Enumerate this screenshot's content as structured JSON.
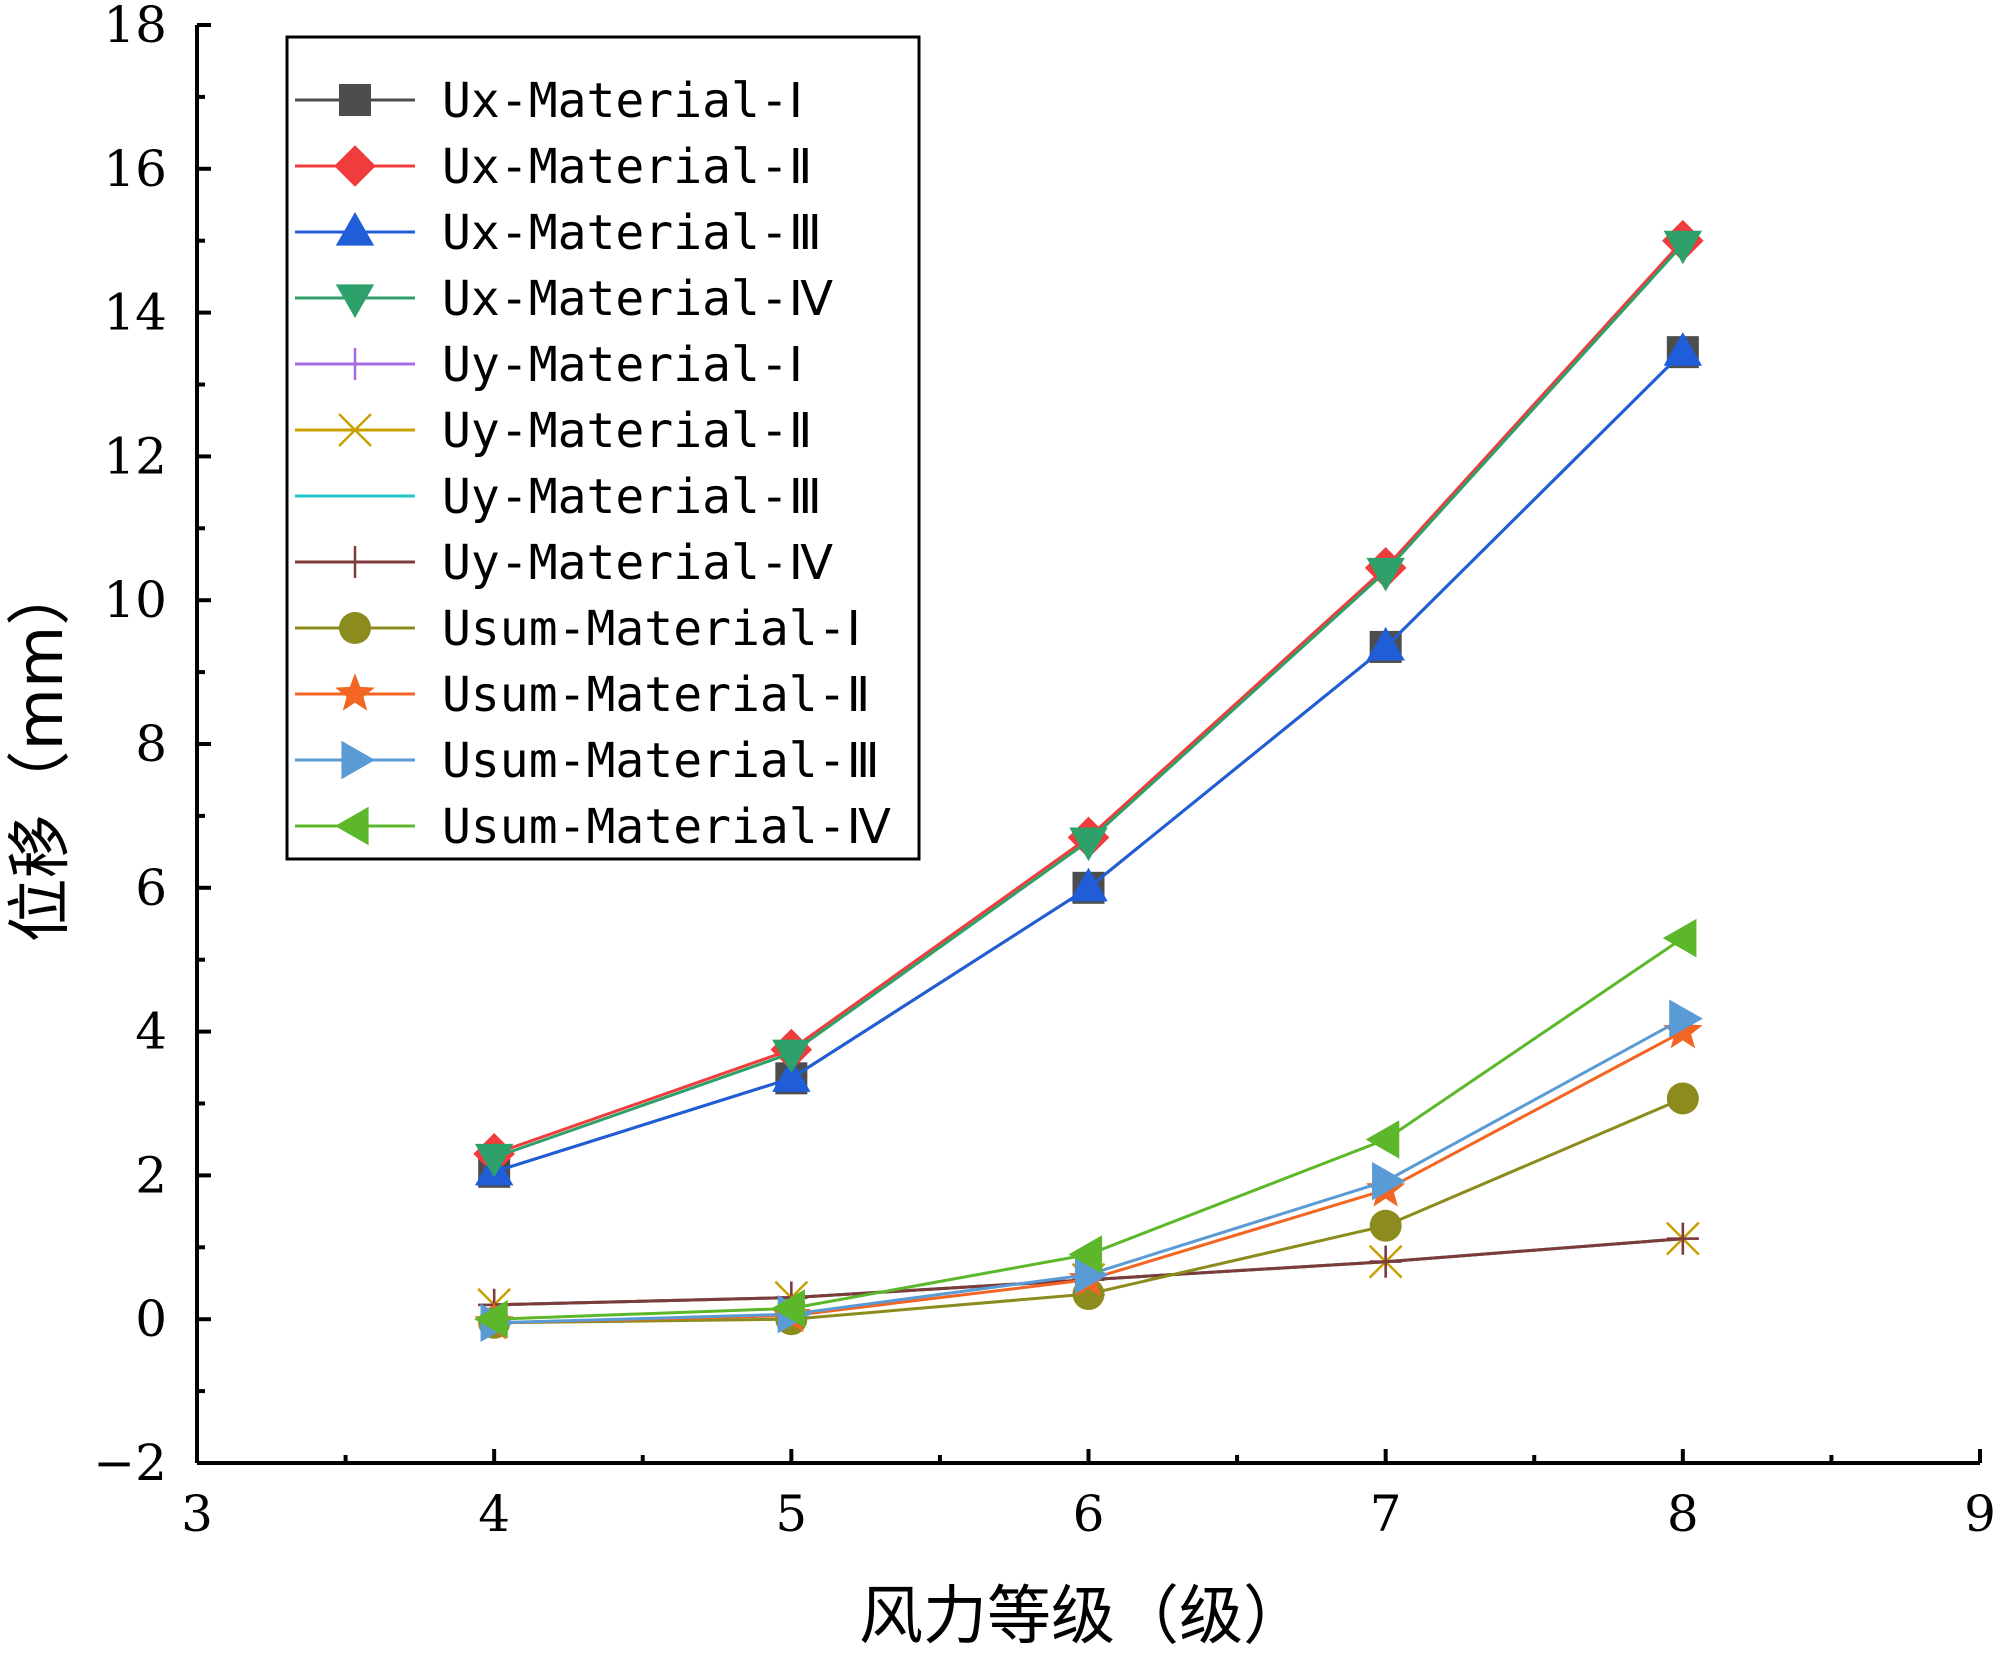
{
  "chart_data": {
    "type": "line",
    "title": "",
    "xlabel": "风力等级（级）",
    "ylabel": "位移（mm）",
    "xlim": [
      3,
      9
    ],
    "ylim": [
      -2,
      18
    ],
    "x_ticks": [
      "3",
      "4",
      "5",
      "6",
      "7",
      "8",
      "9"
    ],
    "y_ticks": [
      "−2",
      "0",
      "2",
      "4",
      "6",
      "8",
      "10",
      "12",
      "14",
      "16",
      "18"
    ],
    "x": [
      4,
      5,
      6,
      7,
      8
    ],
    "legend_position": "top-left",
    "grid": false,
    "series": [
      {
        "name": "Ux-Material-Ⅰ",
        "color": "#4d4d4d",
        "marker": "square",
        "values": [
          2.05,
          3.35,
          6.0,
          9.35,
          13.45
        ]
      },
      {
        "name": "Ux-Material-Ⅱ",
        "color": "#f03c3c",
        "marker": "diamond",
        "values": [
          2.3,
          3.75,
          6.7,
          10.45,
          15.0
        ]
      },
      {
        "name": "Ux-Material-Ⅲ",
        "color": "#1f5ed8",
        "marker": "triangle-up",
        "values": [
          2.05,
          3.35,
          6.0,
          9.35,
          13.45
        ]
      },
      {
        "name": "Ux-Material-Ⅳ",
        "color": "#2ea06a",
        "marker": "triangle-down",
        "values": [
          2.25,
          3.7,
          6.65,
          10.4,
          14.95
        ]
      },
      {
        "name": "Uy-Material-Ⅰ",
        "color": "#a56be6",
        "marker": "plus",
        "values": [
          0.2,
          0.3,
          0.55,
          0.8,
          1.12
        ]
      },
      {
        "name": "Uy-Material-Ⅱ",
        "color": "#c8a000",
        "marker": "x",
        "values": [
          0.2,
          0.3,
          0.55,
          0.8,
          1.12
        ]
      },
      {
        "name": "Uy-Material-Ⅲ",
        "color": "#22c4c4",
        "marker": "none",
        "values": [
          0.2,
          0.3,
          0.55,
          0.8,
          1.12
        ]
      },
      {
        "name": "Uy-Material-Ⅳ",
        "color": "#7d3b3b",
        "marker": "plus",
        "values": [
          0.2,
          0.3,
          0.55,
          0.8,
          1.12
        ]
      },
      {
        "name": "Usum-Material-Ⅰ",
        "color": "#8c8c1e",
        "marker": "circle",
        "values": [
          -0.05,
          0.0,
          0.35,
          1.3,
          3.07
        ]
      },
      {
        "name": "Usum-Material-Ⅱ",
        "color": "#f26522",
        "marker": "star",
        "values": [
          -0.05,
          0.05,
          0.55,
          1.8,
          4.0
        ]
      },
      {
        "name": "Usum-Material-Ⅲ",
        "color": "#5b9bd5",
        "marker": "triangle-right",
        "values": [
          -0.05,
          0.07,
          0.62,
          1.92,
          4.18
        ]
      },
      {
        "name": "Usum-Material-Ⅳ",
        "color": "#5cb82a",
        "marker": "triangle-left",
        "values": [
          0.0,
          0.15,
          0.9,
          2.5,
          5.3
        ]
      }
    ]
  }
}
